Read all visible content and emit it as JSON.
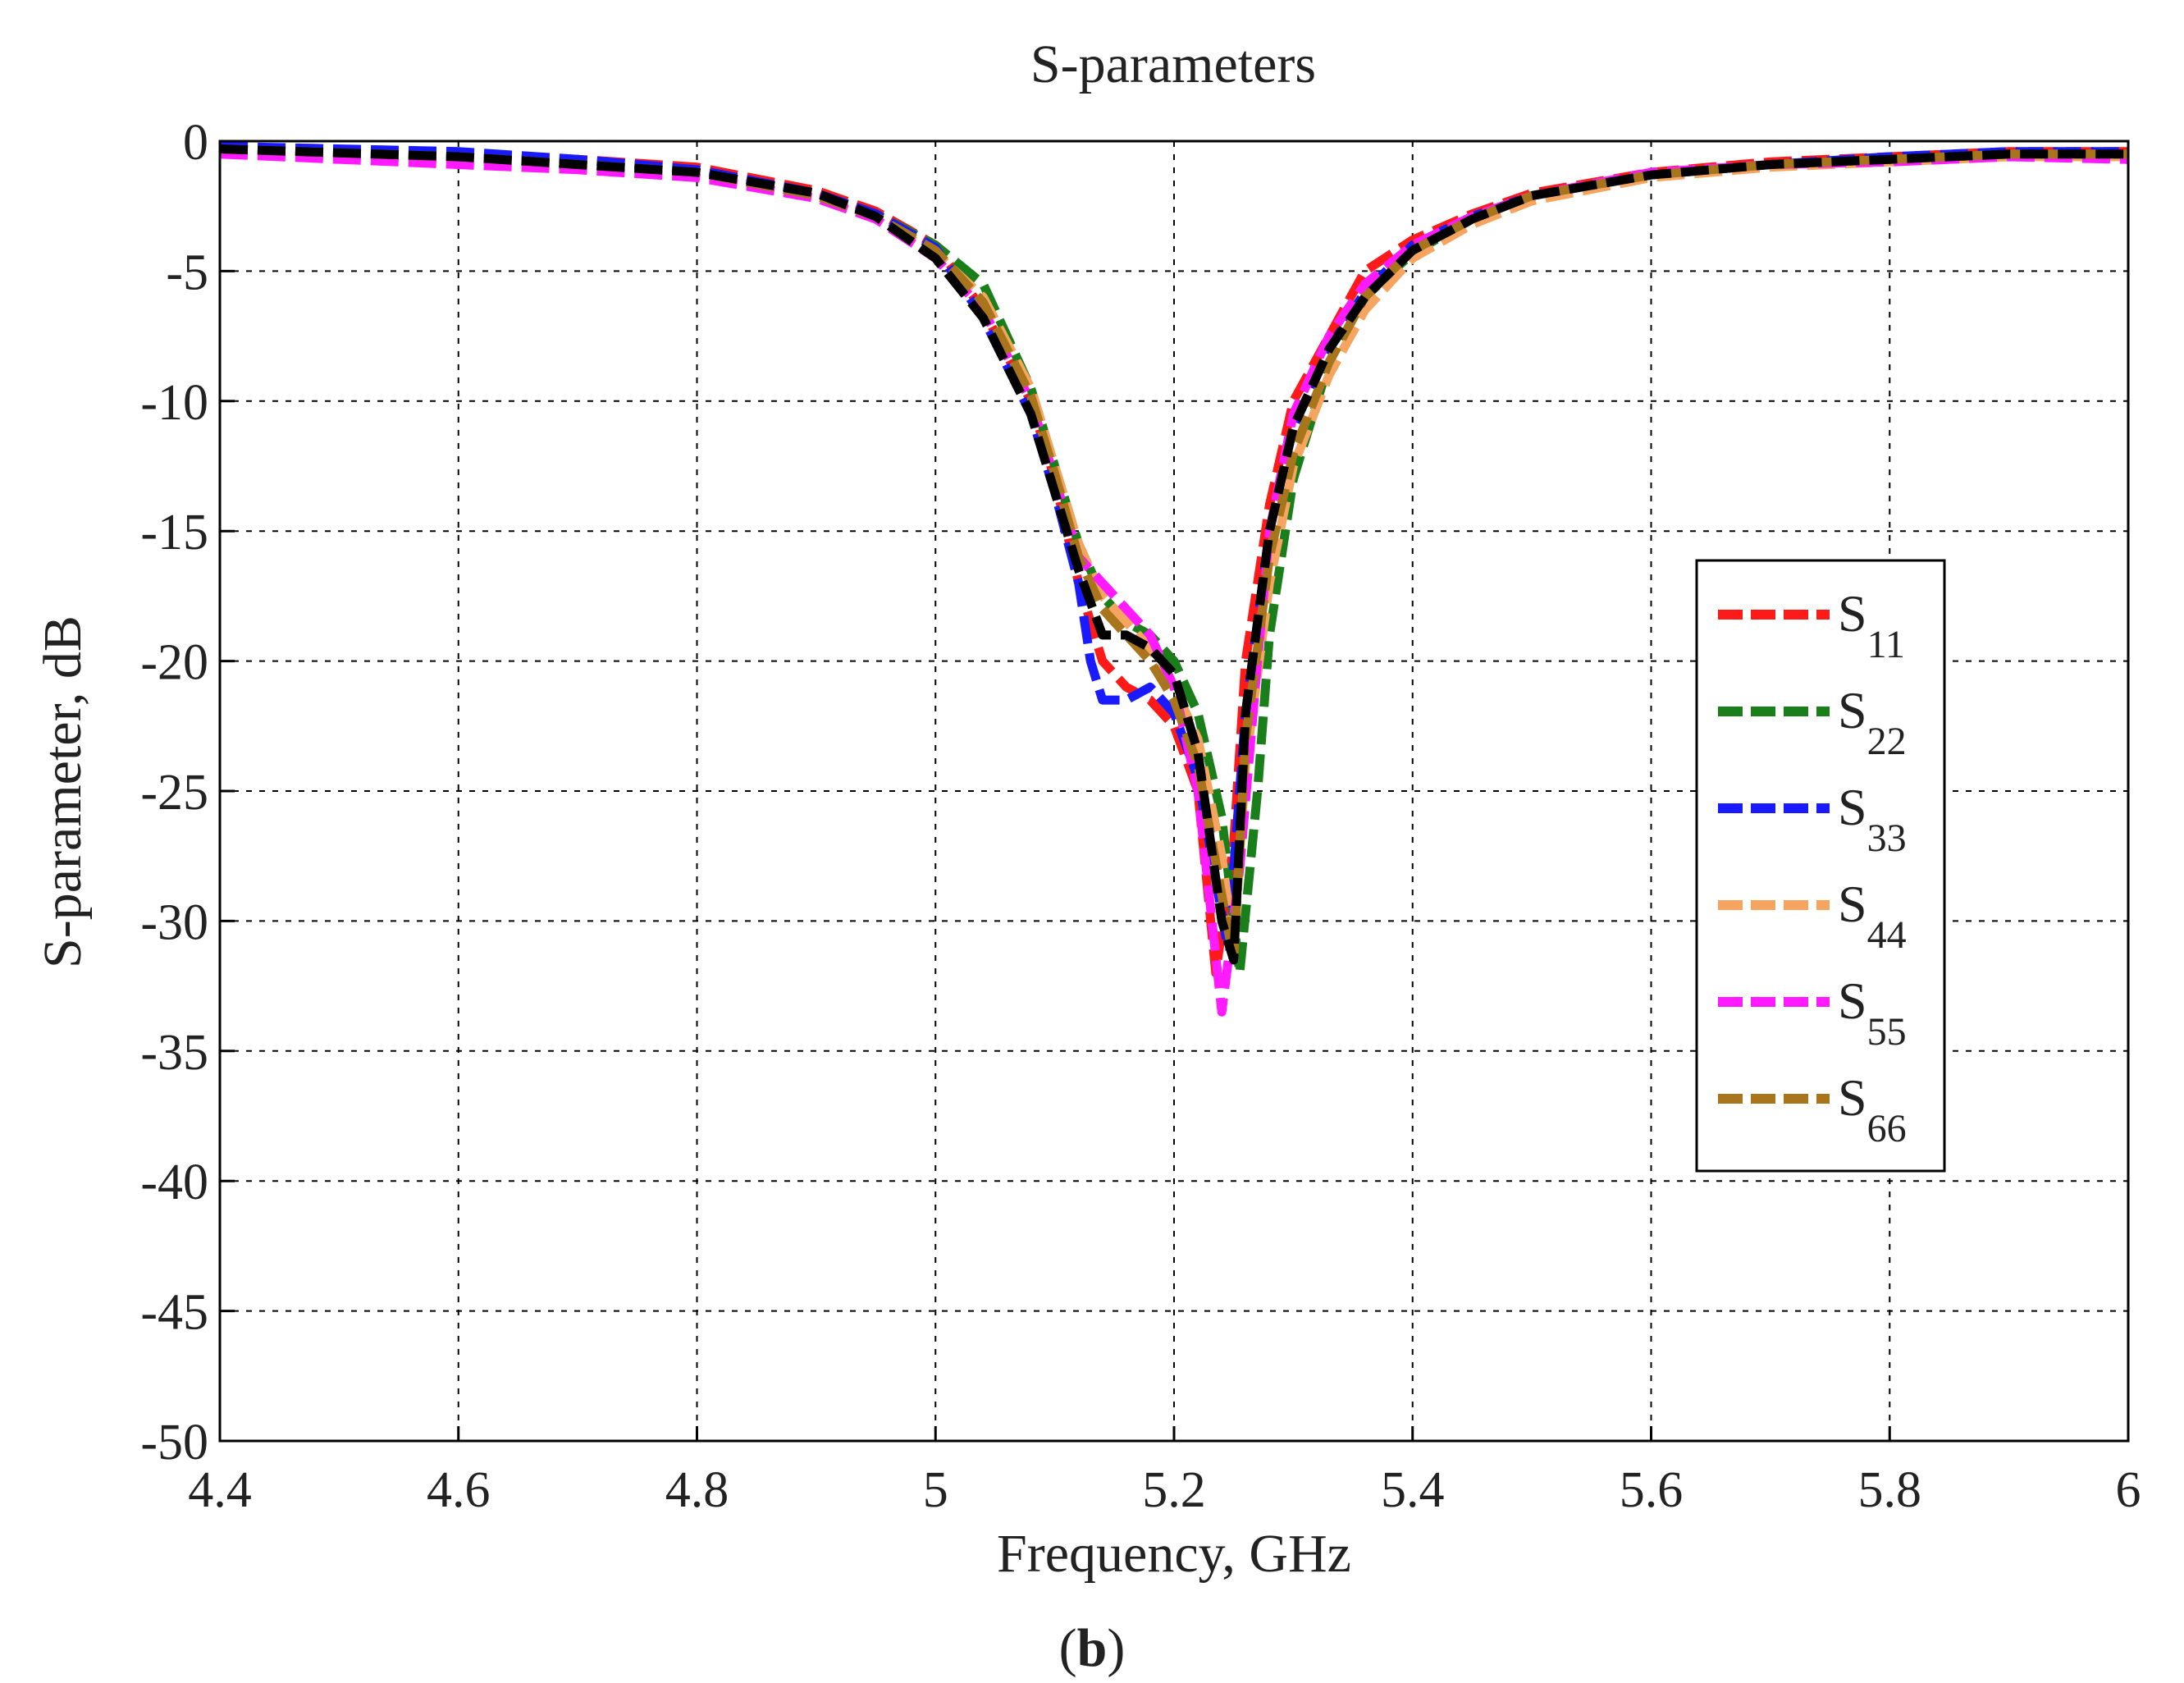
{
  "caption": "(b)",
  "chart_data": {
    "type": "line",
    "title": "S-parameters",
    "xlabel": "Frequency, GHz",
    "ylabel": "S-parameter, dB",
    "xlim": [
      4.4,
      6.0
    ],
    "ylim": [
      -50,
      0
    ],
    "xticks": [
      4.4,
      4.6,
      4.8,
      5.0,
      5.2,
      5.4,
      5.6,
      5.8,
      6.0
    ],
    "xtick_labels": [
      "4.4",
      "4.6",
      "4.8",
      "5",
      "5.2",
      "5.4",
      "5.6",
      "5.8",
      "6"
    ],
    "yticks": [
      0,
      -5,
      -10,
      -15,
      -20,
      -25,
      -30,
      -35,
      -40,
      -45,
      -50
    ],
    "ytick_labels": [
      "0",
      "-5",
      "-10",
      "-15",
      "-20",
      "-25",
      "-30",
      "-35",
      "-40",
      "-45",
      "-50"
    ],
    "grid": true,
    "legend_position": "right",
    "series": [
      {
        "name": "S11",
        "label_main": "S",
        "label_sub": "11",
        "color": "#ff1a1a",
        "x": [
          4.4,
          4.6,
          4.7,
          4.8,
          4.9,
          4.95,
          5.0,
          5.04,
          5.08,
          5.1,
          5.12,
          5.14,
          5.16,
          5.18,
          5.2,
          5.22,
          5.235,
          5.25,
          5.26,
          5.28,
          5.3,
          5.33,
          5.36,
          5.4,
          5.45,
          5.5,
          5.6,
          5.7,
          5.8,
          5.9,
          6.0
        ],
        "y": [
          -0.3,
          -0.5,
          -0.7,
          -1.0,
          -1.9,
          -2.7,
          -4.0,
          -6.5,
          -10.0,
          -13.0,
          -17.0,
          -20.0,
          -21.0,
          -21.5,
          -22.5,
          -25.0,
          -32.0,
          -27.0,
          -20.0,
          -14.0,
          -10.0,
          -7.5,
          -5.0,
          -3.8,
          -2.8,
          -2.0,
          -1.2,
          -0.8,
          -0.6,
          -0.4,
          -0.4
        ]
      },
      {
        "name": "S22",
        "label_main": "S",
        "label_sub": "22",
        "color": "#1a7f1a",
        "x": [
          4.4,
          4.6,
          4.7,
          4.8,
          4.9,
          4.95,
          5.0,
          5.04,
          5.08,
          5.1,
          5.12,
          5.14,
          5.16,
          5.18,
          5.2,
          5.22,
          5.24,
          5.255,
          5.27,
          5.28,
          5.3,
          5.33,
          5.36,
          5.4,
          5.45,
          5.5,
          5.6,
          5.7,
          5.8,
          5.9,
          6.0
        ],
        "y": [
          -0.3,
          -0.6,
          -0.9,
          -1.2,
          -2.0,
          -2.8,
          -4.0,
          -5.5,
          -9.5,
          -12.5,
          -15.5,
          -17.5,
          -18.5,
          -19.0,
          -20.0,
          -22.0,
          -26.0,
          -32.0,
          -25.0,
          -19.0,
          -13.0,
          -8.5,
          -6.0,
          -4.3,
          -3.0,
          -2.1,
          -1.3,
          -0.9,
          -0.7,
          -0.5,
          -0.6
        ]
      },
      {
        "name": "S33",
        "label_main": "S",
        "label_sub": "33",
        "color": "#1a1aff",
        "x": [
          4.4,
          4.6,
          4.7,
          4.8,
          4.9,
          4.95,
          5.0,
          5.04,
          5.08,
          5.1,
          5.12,
          5.13,
          5.14,
          5.16,
          5.18,
          5.2,
          5.22,
          5.245,
          5.26,
          5.28,
          5.3,
          5.33,
          5.36,
          5.4,
          5.45,
          5.5,
          5.6,
          5.7,
          5.8,
          5.9,
          6.0
        ],
        "y": [
          -0.2,
          -0.4,
          -0.7,
          -1.1,
          -2.0,
          -2.8,
          -4.1,
          -6.8,
          -10.5,
          -13.5,
          -17.0,
          -20.0,
          -21.5,
          -21.5,
          -21.0,
          -22.0,
          -24.5,
          -31.0,
          -22.0,
          -15.0,
          -11.0,
          -8.0,
          -5.8,
          -4.0,
          -2.9,
          -2.1,
          -1.3,
          -0.9,
          -0.6,
          -0.4,
          -0.4
        ]
      },
      {
        "name": "S44",
        "label_main": "S",
        "label_sub": "44",
        "color": "#f5a55f",
        "x": [
          4.4,
          4.6,
          4.7,
          4.8,
          4.9,
          4.95,
          5.0,
          5.04,
          5.08,
          5.1,
          5.12,
          5.14,
          5.16,
          5.18,
          5.2,
          5.22,
          5.24,
          5.25,
          5.26,
          5.28,
          5.3,
          5.33,
          5.36,
          5.4,
          5.45,
          5.5,
          5.6,
          5.7,
          5.8,
          5.9,
          6.0
        ],
        "y": [
          -0.4,
          -0.7,
          -1.0,
          -1.3,
          -2.2,
          -3.0,
          -4.3,
          -6.0,
          -9.5,
          -12.5,
          -15.5,
          -17.5,
          -18.5,
          -19.5,
          -21.0,
          -23.0,
          -27.5,
          -31.0,
          -24.0,
          -17.0,
          -12.5,
          -9.0,
          -6.5,
          -4.5,
          -3.2,
          -2.3,
          -1.4,
          -1.0,
          -0.8,
          -0.6,
          -0.6
        ]
      },
      {
        "name": "S55",
        "label_main": "S",
        "label_sub": "55",
        "color": "#ff1aff",
        "x": [
          4.4,
          4.6,
          4.7,
          4.8,
          4.9,
          4.95,
          5.0,
          5.04,
          5.08,
          5.1,
          5.12,
          5.14,
          5.16,
          5.18,
          5.2,
          5.22,
          5.24,
          5.255,
          5.27,
          5.28,
          5.3,
          5.33,
          5.36,
          5.4,
          5.45,
          5.5,
          5.6,
          5.7,
          5.8,
          5.9,
          6.0
        ],
        "y": [
          -0.5,
          -0.9,
          -1.1,
          -1.4,
          -2.2,
          -3.0,
          -4.5,
          -6.5,
          -10.0,
          -13.0,
          -16.0,
          -17.0,
          -18.0,
          -19.0,
          -21.0,
          -25.0,
          -33.5,
          -28.0,
          -20.0,
          -15.0,
          -10.5,
          -7.5,
          -5.5,
          -4.0,
          -2.9,
          -2.1,
          -1.2,
          -0.9,
          -0.8,
          -0.6,
          -0.7
        ]
      },
      {
        "name": "S66",
        "label_main": "S",
        "label_sub": "66",
        "color": "#a8751c",
        "x": [
          4.4,
          4.6,
          4.7,
          4.8,
          4.9,
          4.95,
          5.0,
          5.04,
          5.08,
          5.1,
          5.12,
          5.14,
          5.16,
          5.18,
          5.2,
          5.22,
          5.24,
          5.25,
          5.26,
          5.28,
          5.3,
          5.33,
          5.36,
          5.4,
          5.45,
          5.5,
          5.6,
          5.7,
          5.8,
          5.9,
          6.0
        ],
        "y": [
          -0.3,
          -0.6,
          -0.9,
          -1.2,
          -2.1,
          -2.9,
          -4.2,
          -6.2,
          -9.8,
          -12.8,
          -16.0,
          -18.0,
          -19.0,
          -20.0,
          -21.5,
          -24.0,
          -29.0,
          -31.5,
          -23.0,
          -16.0,
          -12.0,
          -8.5,
          -6.0,
          -4.2,
          -3.0,
          -2.1,
          -1.3,
          -0.9,
          -0.7,
          -0.5,
          -0.5
        ]
      },
      {
        "name": "",
        "label_main": "",
        "label_sub": "",
        "color": "#000000",
        "x": [
          4.4,
          4.6,
          4.7,
          4.8,
          4.9,
          4.95,
          5.0,
          5.04,
          5.08,
          5.1,
          5.12,
          5.14,
          5.16,
          5.18,
          5.2,
          5.22,
          5.24,
          5.25,
          5.26,
          5.28,
          5.3,
          5.33,
          5.36,
          5.4,
          5.45,
          5.5,
          5.6,
          5.7,
          5.8,
          5.9,
          6.0
        ],
        "y": [
          -0.3,
          -0.6,
          -0.9,
          -1.2,
          -2.0,
          -2.9,
          -4.5,
          -6.8,
          -10.5,
          -13.5,
          -16.5,
          -19.0,
          -19.0,
          -19.5,
          -20.5,
          -23.5,
          -30.0,
          -31.5,
          -22.0,
          -15.0,
          -11.0,
          -8.0,
          -6.0,
          -4.2,
          -3.0,
          -2.1,
          -1.3,
          -0.9,
          -0.7,
          -0.5,
          -0.5
        ]
      }
    ]
  }
}
